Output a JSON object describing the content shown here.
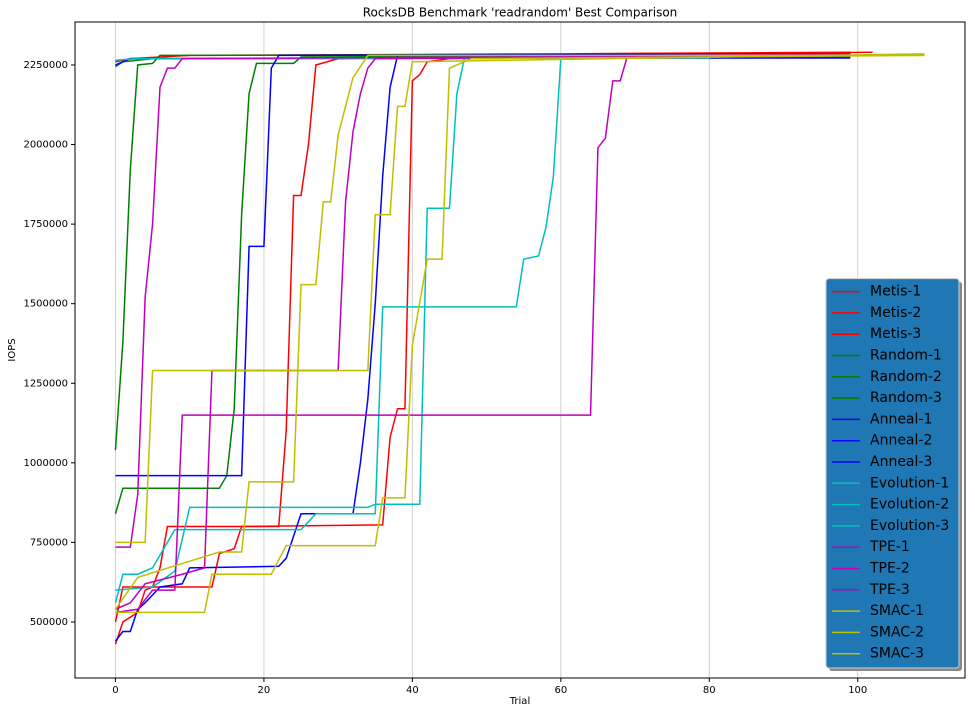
{
  "chart_data": {
    "type": "line",
    "title": "RocksDB Benchmark 'readrandom' Best Comparison",
    "x_label": "Trial",
    "y_label": "IOPS",
    "xlim": [
      -5.45,
      114.45
    ],
    "xticks": [
      0,
      20,
      40,
      60,
      80,
      100
    ],
    "ylim": [
      324000,
      2385000
    ],
    "yticks": [
      500000,
      750000,
      1000000,
      1250000,
      1500000,
      1750000,
      2000000,
      2250000
    ],
    "grid": "x",
    "legend": "lower right",
    "series": [
      {
        "name": "Metis-1",
        "color": "#ff0000",
        "x": [
          0,
          1,
          3,
          4,
          5,
          6,
          7,
          22,
          23,
          24,
          25,
          26,
          27,
          30,
          60,
          102
        ],
        "values": [
          430000,
          500000,
          530000,
          600000,
          610000,
          670000,
          800000,
          800000,
          1100000,
          1840000,
          1840000,
          2000000,
          2250000,
          2270000,
          2280000,
          2290000
        ]
      },
      {
        "name": "Metis-2",
        "color": "#ff0000",
        "x": [
          0,
          1,
          13,
          14,
          16,
          17,
          36,
          37,
          38,
          39,
          40,
          41,
          42,
          45,
          100
        ],
        "values": [
          500000,
          610000,
          610000,
          715000,
          730000,
          800000,
          805000,
          1080000,
          1170000,
          1170000,
          2200000,
          2220000,
          2260000,
          2270000,
          2280000
        ]
      },
      {
        "name": "Metis-3",
        "color": "#ff0000",
        "x": [
          0,
          2,
          10,
          60,
          99
        ],
        "values": [
          2260000,
          2270000,
          2280000,
          2285000,
          2290000
        ]
      },
      {
        "name": "Random-1",
        "color": "#008000",
        "x": [
          0,
          1,
          2,
          3,
          5,
          6,
          99
        ],
        "values": [
          1040000,
          1380000,
          1920000,
          2250000,
          2255000,
          2280000,
          2285000
        ]
      },
      {
        "name": "Random-2",
        "color": "#008000",
        "x": [
          0,
          1,
          14,
          15,
          16,
          17,
          18,
          19,
          24,
          25,
          99
        ],
        "values": [
          840000,
          920000,
          920000,
          960000,
          1170000,
          1780000,
          2160000,
          2255000,
          2255000,
          2275000,
          2280000
        ]
      },
      {
        "name": "Random-3",
        "color": "#008000",
        "x": [
          0,
          1,
          5,
          99
        ],
        "values": [
          2245000,
          2260000,
          2270000,
          2275000
        ]
      },
      {
        "name": "Anneal-1",
        "color": "#0000ff",
        "x": [
          0,
          17,
          18,
          20,
          21,
          22,
          99
        ],
        "values": [
          960000,
          960000,
          1680000,
          1680000,
          2240000,
          2280000,
          2285000
        ]
      },
      {
        "name": "Anneal-2",
        "color": "#0000ff",
        "x": [
          0,
          1,
          2,
          3,
          4,
          6,
          9,
          10,
          22,
          23,
          25,
          32,
          33,
          34,
          35,
          36,
          37,
          38,
          99
        ],
        "values": [
          440000,
          470000,
          470000,
          540000,
          560000,
          610000,
          620000,
          670000,
          675000,
          700000,
          840000,
          840000,
          1000000,
          1200000,
          1500000,
          1900000,
          2180000,
          2280000,
          2285000
        ]
      },
      {
        "name": "Anneal-3",
        "color": "#0000ff",
        "x": [
          0,
          2,
          99
        ],
        "values": [
          2250000,
          2270000,
          2272000
        ]
      },
      {
        "name": "Evolution-1",
        "color": "#00bfbf",
        "x": [
          0,
          1,
          3,
          5,
          8,
          25,
          27,
          35,
          36,
          54,
          55,
          57,
          58,
          59,
          60,
          80
        ],
        "values": [
          560000,
          650000,
          650000,
          670000,
          790000,
          790000,
          840000,
          840000,
          1490000,
          1490000,
          1640000,
          1650000,
          1740000,
          1900000,
          2270000,
          2275000
        ]
      },
      {
        "name": "Evolution-2",
        "color": "#00bfbf",
        "x": [
          0,
          5,
          8,
          10,
          34,
          35,
          41,
          42,
          45,
          46,
          47,
          99
        ],
        "values": [
          600000,
          610000,
          660000,
          860000,
          860000,
          870000,
          870000,
          1800000,
          1800000,
          2160000,
          2270000,
          2280000
        ]
      },
      {
        "name": "Evolution-3",
        "color": "#00bfbf",
        "x": [
          0,
          3,
          80
        ],
        "values": [
          2265000,
          2270000,
          2272000
        ]
      },
      {
        "name": "TPE-1",
        "color": "#bf00bf",
        "x": [
          0,
          3,
          5,
          8,
          9,
          64,
          65,
          66,
          67,
          68,
          69,
          99
        ],
        "values": [
          530000,
          540000,
          600000,
          600000,
          1150000,
          1150000,
          1990000,
          2020000,
          2200000,
          2200000,
          2280000,
          2285000
        ]
      },
      {
        "name": "TPE-2",
        "color": "#bf00bf",
        "x": [
          0,
          2,
          4,
          9,
          12,
          13,
          30,
          31,
          32,
          33,
          34,
          35,
          99
        ],
        "values": [
          540000,
          560000,
          620000,
          650000,
          670000,
          1290000,
          1290000,
          1820000,
          2040000,
          2160000,
          2240000,
          2270000,
          2280000
        ]
      },
      {
        "name": "TPE-3",
        "color": "#bf00bf",
        "x": [
          0,
          2,
          3,
          4,
          5,
          6,
          7,
          8,
          9,
          99
        ],
        "values": [
          735000,
          735000,
          900000,
          1520000,
          1750000,
          2180000,
          2240000,
          2240000,
          2270000,
          2280000
        ]
      },
      {
        "name": "SMAC-1",
        "color": "#bfbf00",
        "x": [
          0,
          4,
          5,
          34,
          35,
          37,
          38,
          39,
          40,
          109
        ],
        "values": [
          750000,
          750000,
          1290000,
          1290000,
          1780000,
          1780000,
          2120000,
          2120000,
          2260000,
          2285000
        ]
      },
      {
        "name": "SMAC-2",
        "color": "#bfbf00",
        "x": [
          0,
          12,
          13,
          21,
          23,
          35,
          36,
          39,
          40,
          42,
          44,
          45,
          48,
          109
        ],
        "values": [
          530000,
          530000,
          650000,
          650000,
          740000,
          740000,
          890000,
          890000,
          1370000,
          1640000,
          1640000,
          2240000,
          2270000,
          2280000
        ]
      },
      {
        "name": "SMAC-3",
        "color": "#bfbf00",
        "x": [
          0,
          3,
          14,
          17,
          18,
          24,
          25,
          27,
          28,
          29,
          30,
          32,
          34,
          109
        ],
        "values": [
          540000,
          640000,
          720000,
          720000,
          940000,
          940000,
          1560000,
          1560000,
          1820000,
          1820000,
          2030000,
          2210000,
          2280000,
          2280000
        ]
      }
    ]
  }
}
